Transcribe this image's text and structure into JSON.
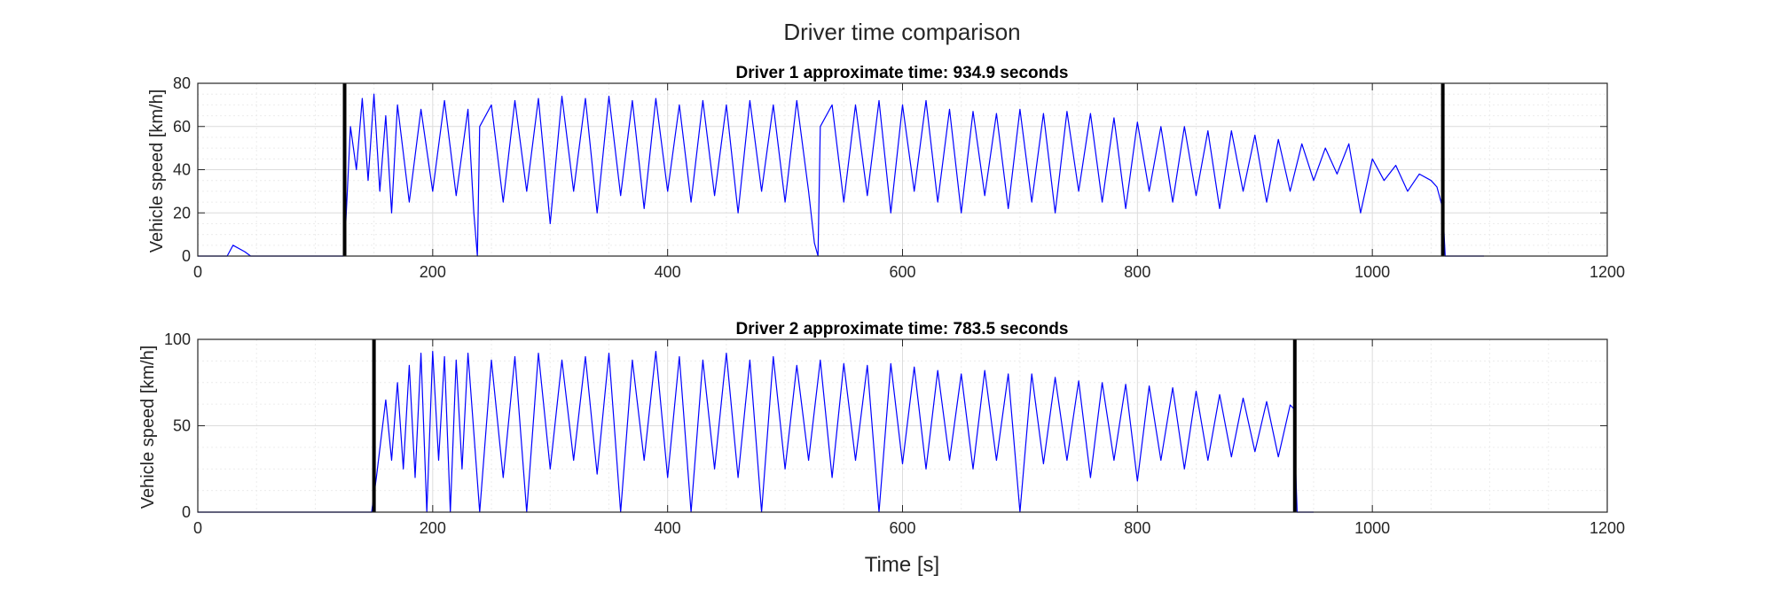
{
  "figure": {
    "title": "Driver time comparison",
    "xlabel": "Time [s]"
  },
  "chart_data": [
    {
      "type": "line",
      "title": "Driver 1 approximate time: 934.9 seconds",
      "xlabel": "",
      "ylabel": "Vehicle speed [km/h]",
      "xlim": [
        0,
        1200
      ],
      "ylim": [
        0,
        80
      ],
      "xticks": [
        0,
        200,
        400,
        600,
        800,
        1000,
        1200
      ],
      "yticks": [
        0,
        20,
        40,
        60,
        80
      ],
      "grid": true,
      "minor_grid": true,
      "series_color": "#0000ff",
      "marker_color": "#000000",
      "vertical_markers": [
        125,
        1060
      ],
      "series": [
        {
          "x": [
            0,
            25,
            30,
            40,
            45,
            120,
            124,
            126,
            130,
            135,
            140,
            145,
            150,
            155,
            160,
            165,
            170,
            180,
            190,
            200,
            210,
            220,
            230,
            235,
            238,
            240,
            250,
            260,
            270,
            280,
            290,
            300,
            310,
            320,
            330,
            340,
            350,
            360,
            370,
            380,
            390,
            400,
            410,
            420,
            430,
            440,
            450,
            460,
            470,
            480,
            490,
            500,
            510,
            520,
            525,
            528,
            530,
            540,
            550,
            560,
            570,
            580,
            590,
            600,
            610,
            620,
            630,
            640,
            650,
            660,
            670,
            680,
            690,
            700,
            710,
            720,
            730,
            740,
            750,
            760,
            770,
            780,
            790,
            800,
            810,
            820,
            830,
            840,
            850,
            860,
            870,
            880,
            890,
            900,
            910,
            920,
            930,
            940,
            950,
            960,
            970,
            980,
            990,
            1000,
            1010,
            1020,
            1030,
            1040,
            1050,
            1055,
            1060,
            1062,
            1065,
            1095
          ],
          "y": [
            0,
            0,
            5,
            2,
            0,
            0,
            0,
            15,
            60,
            40,
            73,
            35,
            75,
            30,
            65,
            20,
            70,
            25,
            68,
            30,
            72,
            28,
            68,
            20,
            0,
            60,
            70,
            25,
            72,
            30,
            73,
            15,
            74,
            30,
            73,
            20,
            74,
            28,
            72,
            22,
            73,
            30,
            70,
            25,
            72,
            28,
            70,
            20,
            72,
            30,
            70,
            25,
            72,
            30,
            6,
            0,
            60,
            70,
            25,
            70,
            28,
            72,
            20,
            70,
            30,
            72,
            25,
            68,
            20,
            67,
            28,
            66,
            22,
            68,
            25,
            66,
            20,
            67,
            30,
            66,
            25,
            64,
            22,
            62,
            30,
            60,
            25,
            60,
            28,
            58,
            22,
            58,
            30,
            56,
            25,
            54,
            30,
            52,
            35,
            50,
            38,
            52,
            20,
            45,
            35,
            42,
            30,
            38,
            35,
            32,
            22,
            0,
            0,
            0
          ]
        }
      ]
    },
    {
      "type": "line",
      "title": "Driver 2 approximate time: 783.5 seconds",
      "xlabel": "",
      "ylabel": "Vehicle speed [km/h]",
      "xlim": [
        0,
        1200
      ],
      "ylim": [
        0,
        100
      ],
      "xticks": [
        0,
        200,
        400,
        600,
        800,
        1000,
        1200
      ],
      "yticks": [
        0,
        50,
        100
      ],
      "grid": true,
      "minor_grid": true,
      "series_color": "#0000ff",
      "marker_color": "#000000",
      "vertical_markers": [
        150,
        934
      ],
      "series": [
        {
          "x": [
            0,
            148,
            152,
            160,
            165,
            170,
            175,
            180,
            185,
            190,
            195,
            200,
            205,
            210,
            215,
            220,
            225,
            230,
            240,
            250,
            260,
            270,
            280,
            290,
            300,
            310,
            320,
            330,
            340,
            350,
            360,
            370,
            380,
            390,
            400,
            410,
            420,
            430,
            440,
            450,
            460,
            470,
            480,
            490,
            500,
            510,
            520,
            530,
            540,
            550,
            560,
            570,
            580,
            590,
            600,
            610,
            620,
            630,
            640,
            650,
            660,
            670,
            680,
            690,
            700,
            710,
            720,
            730,
            740,
            750,
            760,
            770,
            780,
            790,
            800,
            810,
            820,
            830,
            840,
            850,
            860,
            870,
            880,
            890,
            900,
            910,
            920,
            930,
            933,
            936,
            940,
            950
          ],
          "y": [
            0,
            0,
            20,
            65,
            30,
            75,
            25,
            85,
            20,
            92,
            0,
            93,
            30,
            90,
            0,
            88,
            25,
            92,
            0,
            88,
            20,
            90,
            0,
            92,
            25,
            88,
            30,
            90,
            22,
            92,
            0,
            88,
            30,
            93,
            20,
            90,
            0,
            88,
            25,
            92,
            20,
            88,
            0,
            90,
            25,
            85,
            30,
            88,
            20,
            86,
            30,
            85,
            0,
            86,
            28,
            84,
            25,
            82,
            30,
            80,
            25,
            82,
            30,
            80,
            0,
            80,
            28,
            78,
            30,
            76,
            20,
            75,
            30,
            74,
            18,
            73,
            30,
            72,
            25,
            70,
            30,
            68,
            32,
            66,
            35,
            64,
            32,
            62,
            60,
            0,
            0,
            0
          ]
        }
      ]
    }
  ]
}
